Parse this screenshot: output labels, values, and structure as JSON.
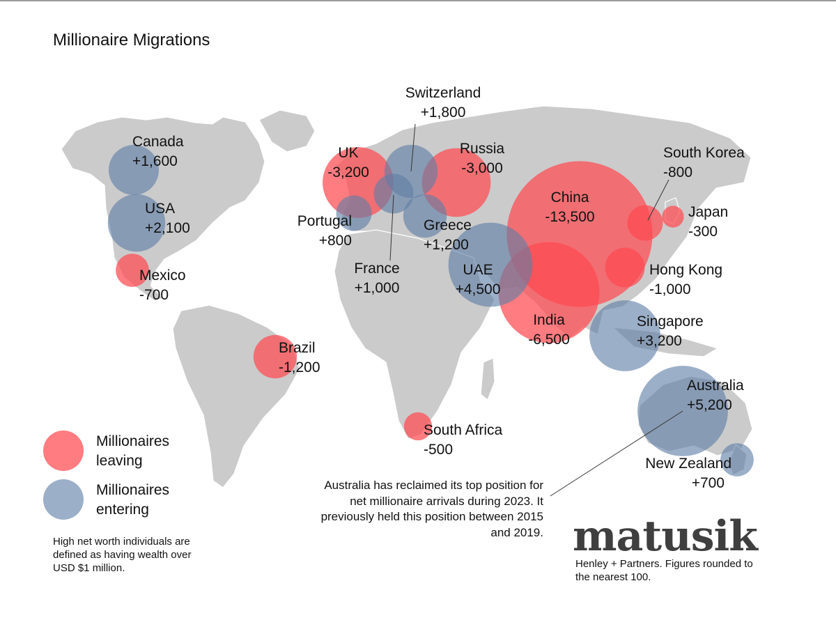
{
  "title": "Millionaire Migrations",
  "colors": {
    "leaving": "#ff4a50",
    "entering": "#5f7ea6",
    "land": "#cbcbcb"
  },
  "legend": {
    "leaving_label": "Millionaires leaving",
    "entering_label": "Millionaires entering"
  },
  "definition": "High net worth individuals are defined as having wealth over USD $1 million.",
  "note": {
    "highlight": "Australia",
    "text": " has reclaimed its top position for net millionaire arrivals during 2023.  It previously held this position between 2015 and 2019."
  },
  "brand": "matusik",
  "source": "Henley + Partners.  Figures rounded to the nearest 100.",
  "countries": [
    {
      "id": "china",
      "name": "China",
      "value": "-13,500",
      "net": -13500
    },
    {
      "id": "india",
      "name": "India",
      "value": "-6,500",
      "net": -6500
    },
    {
      "id": "uk",
      "name": "UK",
      "value": "-3,200",
      "net": -3200
    },
    {
      "id": "russia",
      "name": "Russia",
      "value": "-3,000",
      "net": -3000
    },
    {
      "id": "brazil",
      "name": "Brazil",
      "value": "-1,200",
      "net": -1200
    },
    {
      "id": "hong-kong",
      "name": "Hong Kong",
      "value": "-1,000",
      "net": -1000
    },
    {
      "id": "south-korea",
      "name": "South Korea",
      "value": "-800",
      "net": -800
    },
    {
      "id": "mexico",
      "name": "Mexico",
      "value": "-700",
      "net": -700
    },
    {
      "id": "south-africa",
      "name": "South Africa",
      "value": "-500",
      "net": -500
    },
    {
      "id": "japan",
      "name": "Japan",
      "value": "-300",
      "net": -300
    },
    {
      "id": "australia",
      "name": "Australia",
      "value": "+5,200",
      "net": 5200
    },
    {
      "id": "uae",
      "name": "UAE",
      "value": "+4,500",
      "net": 4500
    },
    {
      "id": "singapore",
      "name": "Singapore",
      "value": "+3,200",
      "net": 3200
    },
    {
      "id": "usa",
      "name": "USA",
      "value": "+2,100",
      "net": 2100
    },
    {
      "id": "switzerland",
      "name": "Switzerland",
      "value": "+1,800",
      "net": 1800
    },
    {
      "id": "canada",
      "name": "Canada",
      "value": "+1,600",
      "net": 1600
    },
    {
      "id": "greece",
      "name": "Greece",
      "value": "+1,200",
      "net": 1200
    },
    {
      "id": "france",
      "name": "France",
      "value": "+1,000",
      "net": 1000
    },
    {
      "id": "portugal",
      "name": "Portugal",
      "value": "+800",
      "net": 800
    },
    {
      "id": "new-zealand",
      "name": "New Zealand",
      "value": "+700",
      "net": 700
    }
  ]
}
